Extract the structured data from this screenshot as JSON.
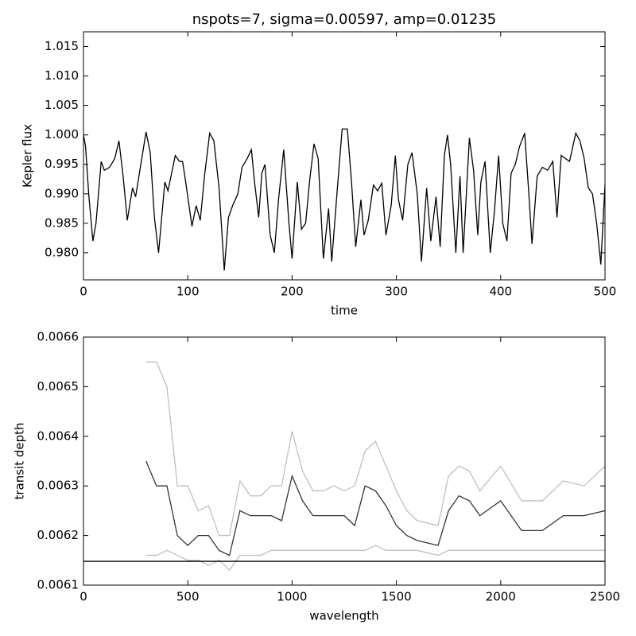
{
  "chart_data": [
    {
      "type": "line",
      "title": "nspots=7, sigma=0.00597, amp=0.01235",
      "xlabel": "time",
      "ylabel": "Kepler flux",
      "color": "#000000",
      "x": [
        0,
        2,
        5,
        9,
        12,
        17,
        20,
        25,
        30,
        34,
        38,
        42,
        47,
        50,
        55,
        60,
        64,
        68,
        72,
        78,
        81,
        88,
        92,
        95,
        98,
        104,
        108,
        112,
        116,
        121,
        125,
        130,
        135,
        139,
        143,
        148,
        152,
        157,
        161,
        164,
        168,
        171,
        174,
        179,
        183,
        187,
        192,
        197,
        200,
        205,
        209,
        213,
        217,
        221,
        225,
        230,
        235,
        238,
        243,
        248,
        253,
        257,
        261,
        266,
        269,
        273,
        278,
        282,
        286,
        290,
        295,
        299,
        302,
        306,
        311,
        315,
        320,
        324,
        329,
        333,
        338,
        342,
        346,
        349,
        352,
        357,
        361,
        364,
        370,
        374,
        378,
        381,
        385,
        390,
        394,
        398,
        402,
        406,
        410,
        414,
        418,
        423,
        427,
        430,
        435,
        440,
        445,
        450,
        454,
        458,
        466,
        472,
        476,
        480,
        484,
        488,
        492,
        496,
        500
      ],
      "values": [
        1.0,
        0.998,
        0.99,
        0.982,
        0.985,
        0.9955,
        0.994,
        0.9945,
        0.996,
        0.999,
        0.993,
        0.9855,
        0.991,
        0.9895,
        0.995,
        1.0005,
        0.997,
        0.986,
        0.98,
        0.992,
        0.9905,
        0.9965,
        0.9955,
        0.9955,
        0.992,
        0.9845,
        0.988,
        0.9855,
        0.993,
        1.0003,
        0.999,
        0.991,
        0.977,
        0.986,
        0.988,
        0.99,
        0.9945,
        0.996,
        0.9975,
        0.992,
        0.986,
        0.9935,
        0.995,
        0.983,
        0.98,
        0.989,
        0.9975,
        0.985,
        0.979,
        0.992,
        0.984,
        0.985,
        0.9925,
        0.9985,
        0.996,
        0.979,
        0.9875,
        0.9785,
        0.99,
        1.001,
        1.001,
        0.992,
        0.981,
        0.989,
        0.983,
        0.9855,
        0.9915,
        0.9905,
        0.9918,
        0.983,
        0.988,
        0.9965,
        0.989,
        0.9855,
        0.995,
        0.997,
        0.99,
        0.9785,
        0.991,
        0.982,
        0.9895,
        0.981,
        0.9965,
        1.0,
        0.995,
        0.98,
        0.993,
        0.98,
        0.9995,
        0.994,
        0.983,
        0.992,
        0.9955,
        0.98,
        0.987,
        0.9965,
        0.985,
        0.982,
        0.9935,
        0.995,
        0.998,
        1.0003,
        0.99,
        0.9815,
        0.993,
        0.9945,
        0.994,
        0.9955,
        0.986,
        0.9965,
        0.9955,
        1.0003,
        0.999,
        0.996,
        0.991,
        0.99,
        0.985,
        0.978,
        0.9915
      ],
      "xlim": [
        0,
        500
      ],
      "xticks": [
        0,
        100,
        200,
        300,
        400,
        500
      ],
      "ylim": [
        0.9754,
        1.0175
      ],
      "yticks": [
        {
          "value": 0.98,
          "label": "0.980"
        },
        0.985,
        {
          "value": 0.99,
          "label": "0.990"
        },
        0.995,
        {
          "value": 1.0,
          "label": "1.000"
        },
        1.005,
        {
          "value": 1.01,
          "label": "1.010"
        },
        1.015
      ]
    },
    {
      "type": "line",
      "xlabel": "wavelength",
      "ylabel": "transit depth",
      "x": [
        300,
        350,
        400,
        450,
        500,
        550,
        600,
        650,
        700,
        750,
        800,
        850,
        900,
        950,
        1000,
        1050,
        1100,
        1150,
        1200,
        1250,
        1300,
        1350,
        1400,
        1450,
        1500,
        1550,
        1600,
        1700,
        1750,
        1800,
        1850,
        1900,
        2000,
        2100,
        2200,
        2300,
        2400,
        2500
      ],
      "series": [
        {
          "color": "#000000",
          "opacity": 0.25,
          "values": [
            0.00655,
            0.00655,
            0.0065,
            0.0063,
            0.0063,
            0.00625,
            0.00626,
            0.0062,
            0.0062,
            0.00631,
            0.00628,
            0.00628,
            0.0063,
            0.0063,
            0.00641,
            0.00633,
            0.00629,
            0.00629,
            0.0063,
            0.00629,
            0.0063,
            0.00637,
            0.00639,
            0.00634,
            0.00629,
            0.00625,
            0.00623,
            0.00622,
            0.00632,
            0.00634,
            0.00633,
            0.00629,
            0.00634,
            0.00627,
            0.00627,
            0.00631,
            0.0063,
            0.00634
          ]
        },
        {
          "color": "#000000",
          "opacity": 0.8,
          "values": [
            0.00635,
            0.0063,
            0.0063,
            0.0062,
            0.00618,
            0.0062,
            0.0062,
            0.00617,
            0.00616,
            0.00625,
            0.00624,
            0.00624,
            0.00624,
            0.00623,
            0.00632,
            0.00627,
            0.00624,
            0.00624,
            0.00624,
            0.00624,
            0.00622,
            0.0063,
            0.00629,
            0.00626,
            0.00622,
            0.0062,
            0.00619,
            0.00618,
            0.00625,
            0.00628,
            0.00627,
            0.00624,
            0.00627,
            0.00621,
            0.00621,
            0.00624,
            0.00624,
            0.00625
          ]
        },
        {
          "color": "#000000",
          "opacity": 0.25,
          "values": [
            0.00616,
            0.00616,
            0.00617,
            0.00616,
            0.00615,
            0.00615,
            0.00614,
            0.00615,
            0.00613,
            0.00616,
            0.00616,
            0.00616,
            0.00617,
            0.00617,
            0.00617,
            0.00617,
            0.00617,
            0.00617,
            0.00617,
            0.00617,
            0.00617,
            0.00617,
            0.00618,
            0.00617,
            0.00617,
            0.00617,
            0.00617,
            0.00616,
            0.00617,
            0.00617,
            0.00617,
            0.00617,
            0.00617,
            0.00617,
            0.00617,
            0.00617,
            0.00617,
            0.00617
          ]
        }
      ],
      "hline": 0.006148,
      "xlim": [
        0,
        2500
      ],
      "xticks": [
        0,
        500,
        1000,
        1500,
        2000,
        2500
      ],
      "ylim": [
        0.0061,
        0.0066
      ],
      "yticks": [
        0.0061,
        0.0062,
        0.0063,
        0.0064,
        0.0065,
        0.0066
      ]
    }
  ]
}
